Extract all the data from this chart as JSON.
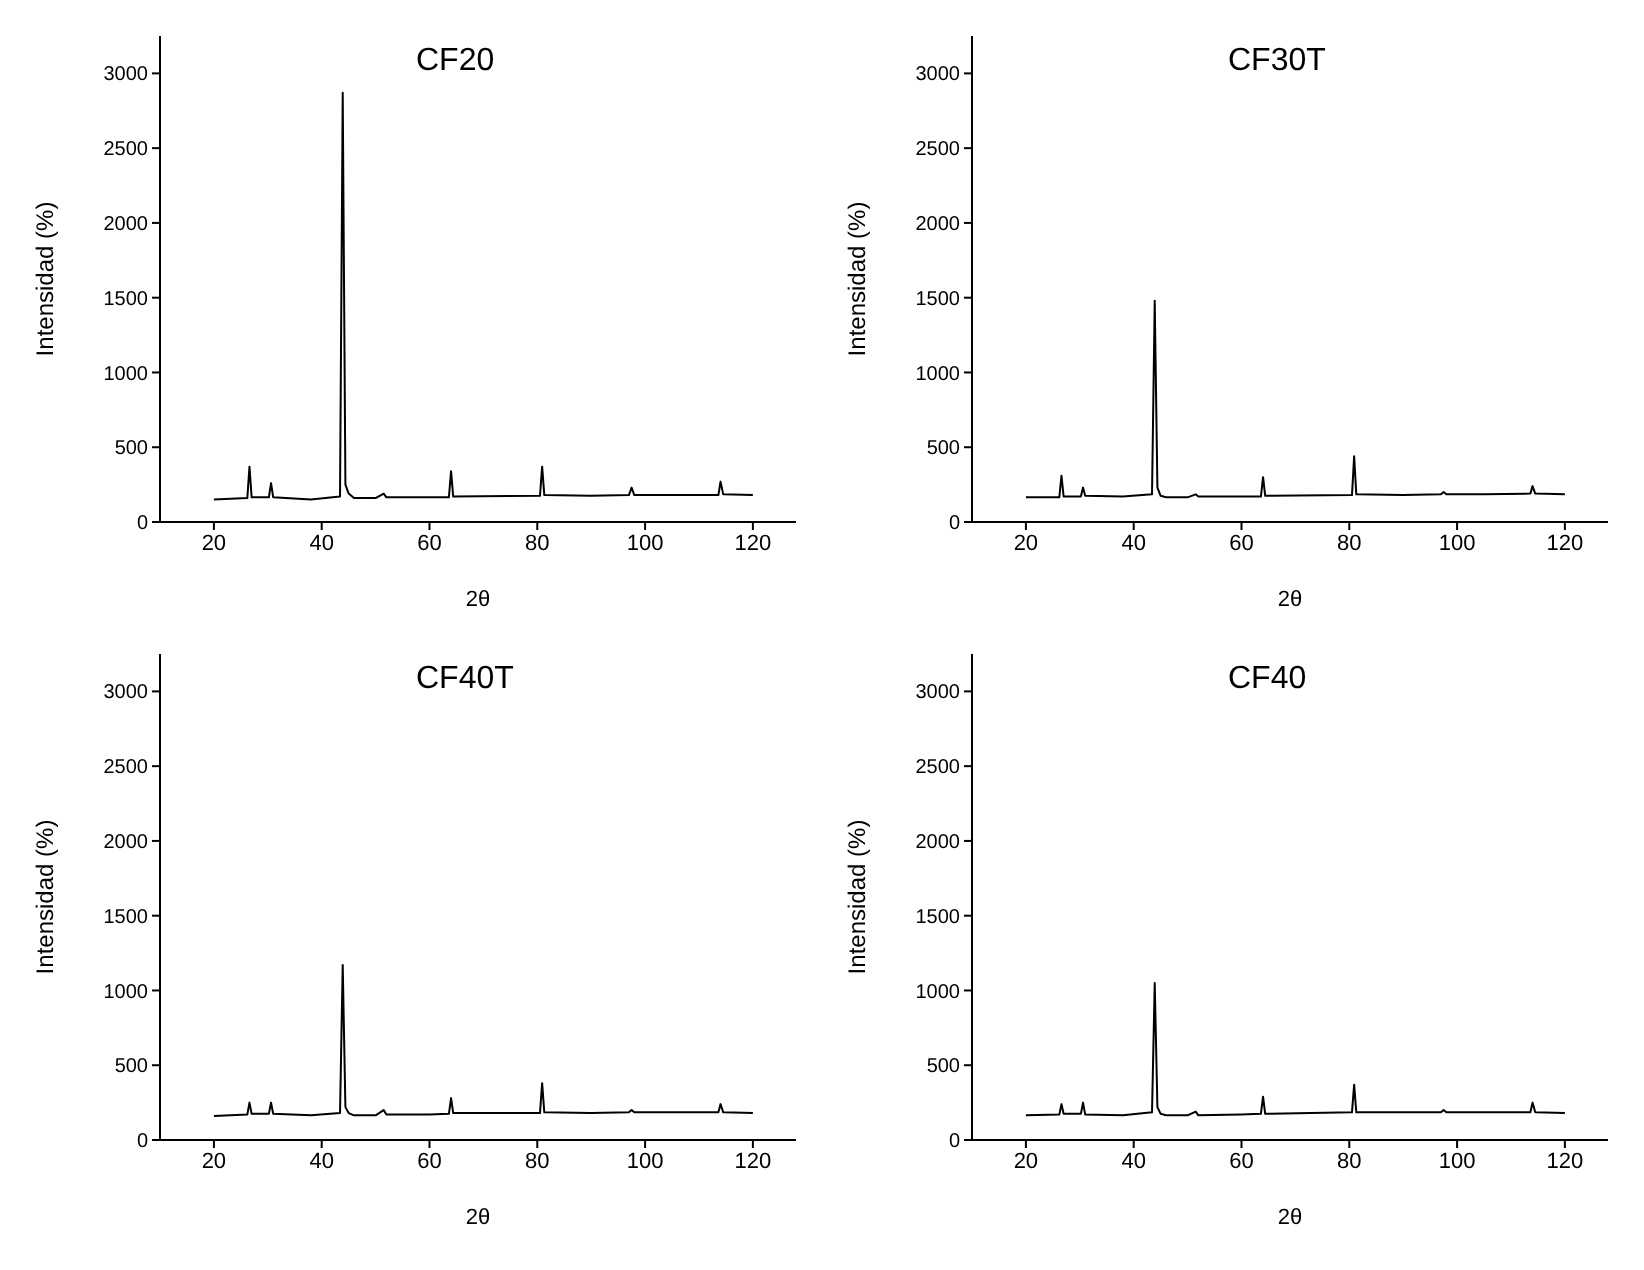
{
  "chart_data": [
    {
      "type": "line",
      "title": "CF20",
      "xlabel": "2θ",
      "ylabel": "Intensidad (%)",
      "xlim": [
        10,
        128
      ],
      "xticks": [
        20,
        40,
        60,
        80,
        100,
        120
      ],
      "ylim": [
        0,
        3250
      ],
      "yticks": [
        0,
        500,
        1000,
        1500,
        2000,
        2500,
        3000
      ],
      "series": [
        {
          "color": "#000000",
          "x": [
            20,
            26.2,
            26.6,
            27,
            30.2,
            30.6,
            31,
            38,
            43.4,
            43.9,
            44.4,
            45,
            46,
            50,
            51.5,
            52,
            60,
            63.6,
            64,
            64.4,
            80.5,
            80.9,
            81.3,
            90,
            97,
            97.5,
            98,
            105,
            113.6,
            114,
            114.5,
            120
          ],
          "values": [
            150,
            160,
            370,
            165,
            165,
            260,
            165,
            150,
            170,
            2870,
            250,
            190,
            160,
            160,
            190,
            165,
            165,
            165,
            340,
            170,
            175,
            370,
            180,
            175,
            180,
            230,
            180,
            180,
            180,
            270,
            185,
            180
          ]
        }
      ]
    },
    {
      "type": "line",
      "title": "CF30T",
      "xlabel": "2θ",
      "ylabel": "Intensidad (%)",
      "xlim": [
        10,
        128
      ],
      "xticks": [
        20,
        40,
        60,
        80,
        100,
        120
      ],
      "ylim": [
        0,
        3250
      ],
      "yticks": [
        0,
        500,
        1000,
        1500,
        2000,
        2500,
        3000
      ],
      "series": [
        {
          "color": "#000000",
          "x": [
            20,
            26.2,
            26.6,
            27,
            30.2,
            30.6,
            31,
            38,
            43.4,
            43.9,
            44.4,
            45,
            46,
            50,
            51.5,
            52,
            60,
            63.6,
            64,
            64.4,
            80.5,
            80.9,
            81.3,
            90,
            97,
            97.5,
            98,
            105,
            113.6,
            114,
            114.5,
            120
          ],
          "values": [
            165,
            165,
            310,
            170,
            170,
            230,
            175,
            170,
            185,
            1480,
            230,
            175,
            165,
            165,
            185,
            170,
            170,
            170,
            300,
            175,
            180,
            440,
            185,
            180,
            185,
            200,
            185,
            185,
            190,
            240,
            190,
            185
          ]
        }
      ]
    },
    {
      "type": "line",
      "title": "CF40T",
      "xlabel": "2θ",
      "ylabel": "Intensidad (%)",
      "xlim": [
        10,
        128
      ],
      "xticks": [
        20,
        40,
        60,
        80,
        100,
        120
      ],
      "ylim": [
        0,
        3250
      ],
      "yticks": [
        0,
        500,
        1000,
        1500,
        2000,
        2500,
        3000
      ],
      "series": [
        {
          "color": "#000000",
          "x": [
            20,
            26.2,
            26.6,
            27,
            30.2,
            30.6,
            31,
            38,
            43.4,
            43.9,
            44.4,
            45,
            46,
            50,
            51.5,
            52,
            60,
            63.6,
            64,
            64.4,
            80.5,
            80.9,
            81.3,
            90,
            97,
            97.5,
            98,
            105,
            113.6,
            114,
            114.5,
            120
          ],
          "values": [
            160,
            170,
            250,
            175,
            175,
            250,
            175,
            165,
            180,
            1170,
            220,
            180,
            165,
            165,
            200,
            170,
            170,
            175,
            280,
            180,
            180,
            380,
            185,
            180,
            185,
            200,
            185,
            185,
            185,
            240,
            185,
            180
          ]
        }
      ]
    },
    {
      "type": "line",
      "title": "CF40",
      "xlabel": "2θ",
      "ylabel": "Intensidad (%)",
      "xlim": [
        10,
        128
      ],
      "xticks": [
        20,
        40,
        60,
        80,
        100,
        120
      ],
      "ylim": [
        0,
        3250
      ],
      "yticks": [
        0,
        500,
        1000,
        1500,
        2000,
        2500,
        3000
      ],
      "series": [
        {
          "color": "#000000",
          "x": [
            20,
            26.2,
            26.6,
            27,
            30.2,
            30.6,
            31,
            38,
            43.4,
            43.9,
            44.4,
            45,
            46,
            50,
            51.5,
            52,
            60,
            63.6,
            64,
            64.4,
            80.5,
            80.9,
            81.3,
            90,
            97,
            97.5,
            98,
            105,
            113.6,
            114,
            114.5,
            120
          ],
          "values": [
            165,
            170,
            240,
            175,
            175,
            250,
            170,
            165,
            185,
            1050,
            220,
            175,
            165,
            165,
            190,
            165,
            170,
            175,
            290,
            175,
            185,
            370,
            185,
            185,
            185,
            200,
            185,
            185,
            185,
            250,
            185,
            180
          ]
        }
      ]
    }
  ]
}
